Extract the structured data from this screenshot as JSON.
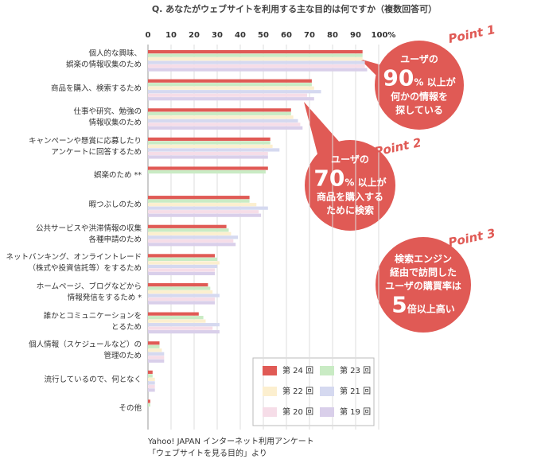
{
  "chart_data": {
    "type": "bar",
    "orientation": "horizontal",
    "title": "Q. あなたがウェブサイトを利用する主な目的は何ですか（複数回答可）",
    "categories": [
      "個人的な興味、\n娯楽の情報収集のため",
      "商品を購入、検索するため",
      "仕事や研究、勉強の\n情報収集のため",
      "キャンペーンや懸賞に応募したり\nアンケートに回答するため",
      "娯楽のため **",
      "暇つぶしのため",
      "公共サービスや洪滞情報の収集\n各種申請のため",
      "ネットバンキング、オンライントレード\n（株式や投資信託等）をするため",
      "ホームページ、ブログなどから\n情報発信をするため *",
      "誰かとコミュニケーションを\nとるため",
      "個人情報（スケジュールなど）の\n管理のため",
      "流行しているので、何となく",
      "その他"
    ],
    "series": [
      {
        "name": "第 24 回",
        "color": "#e05a55",
        "values": [
          93,
          71,
          62,
          53,
          52,
          44,
          34,
          29,
          26,
          22,
          5,
          2,
          1
        ]
      },
      {
        "name": "第 23 回",
        "color": "#c9ebc4",
        "values": [
          93,
          71,
          62,
          53,
          51,
          44,
          35,
          30,
          27,
          24,
          5,
          2,
          1
        ]
      },
      {
        "name": "第 22 回",
        "color": "#fcefcf",
        "values": [
          93,
          72,
          63,
          54,
          null,
          47,
          36,
          31,
          28,
          25,
          6,
          3,
          null
        ]
      },
      {
        "name": "第 21 回",
        "color": "#d5d9f0",
        "values": [
          94,
          75,
          65,
          57,
          null,
          52,
          39,
          30,
          31,
          31,
          7,
          3,
          null
        ]
      },
      {
        "name": "第 20 回",
        "color": "#f6dde8",
        "values": [
          94,
          69,
          66,
          52,
          null,
          48,
          37,
          29,
          29,
          28,
          7,
          3,
          null
        ]
      },
      {
        "name": "第 19 回",
        "color": "#d9cfea",
        "values": [
          95,
          72,
          67,
          52,
          null,
          49,
          38,
          29,
          29,
          31,
          7,
          3,
          null
        ]
      }
    ],
    "xlim": [
      0,
      100
    ],
    "xticks": [
      0,
      10,
      20,
      30,
      40,
      50,
      60,
      70,
      80,
      90,
      {
        "value": 100,
        "label": "100%"
      }
    ],
    "grid": true,
    "legend": "bottom-right",
    "annotations": [
      {
        "tag": "Point 1",
        "head": "ユーザの",
        "big": "90",
        "after": "% 以上が",
        "rest": "何かの情報を\n探している"
      },
      {
        "tag": "Point 2",
        "head": "ユーザの",
        "big": "70",
        "after": "% 以上が",
        "rest": "商品を購入する\nために検索"
      },
      {
        "tag": "Point 3",
        "head": "検索エンジン\n経由で訪問した\nユーザの購買率は",
        "big": "5",
        "after": "倍以上高い",
        "rest": null
      }
    ],
    "source": [
      "Yahoo! JAPAN インターネット利用アンケート",
      "「ウェブサイトを見る目的」より"
    ]
  }
}
